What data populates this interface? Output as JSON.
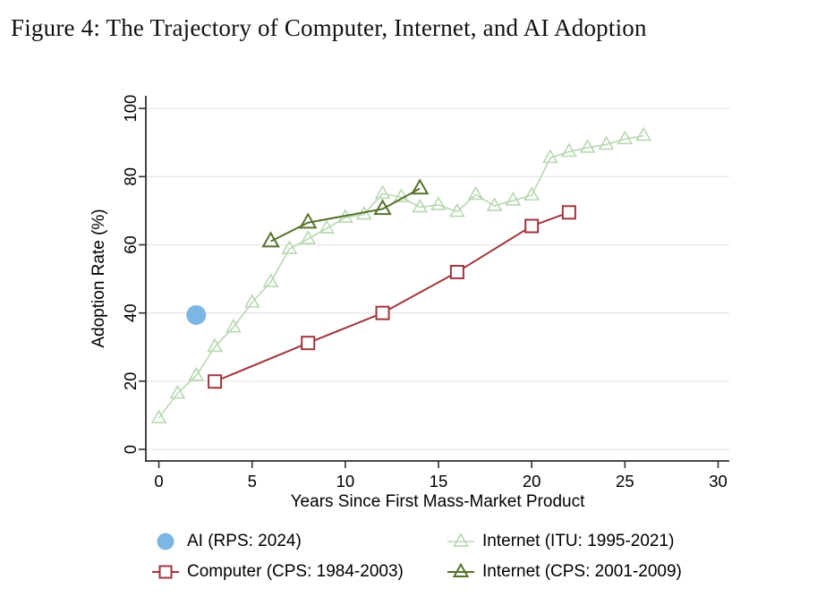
{
  "title": "Figure 4: The Trajectory of Computer, Internet, and AI Adoption",
  "chart_data": {
    "type": "line",
    "title": "Figure 4: The Trajectory of Computer, Internet, and AI Adoption",
    "xlabel": "Years Since First Mass-Market Product",
    "ylabel": "Adoption Rate (%)",
    "xticks": [
      0,
      5,
      10,
      15,
      20,
      25,
      30
    ],
    "yticks": [
      0,
      20,
      40,
      60,
      80,
      100
    ],
    "xlim": [
      -0.7,
      30.6
    ],
    "ylim": [
      -3.4,
      103.7
    ],
    "grid": "horizontal",
    "legend_position": "bottom, two columns, two rows",
    "colors": {
      "ai_blue": "#7db6e3",
      "computer_maroon": "#a0353c",
      "internet_light_green": "#b7d8b0",
      "internet_dark_green": "#55722c",
      "gridline": "#e6e6e6",
      "axis": "#303030",
      "text": "#000000"
    },
    "series": [
      {
        "name": "Internet (ITU: 1995-2021)",
        "marker": "open-triangle",
        "color": "#b7d8b0",
        "stroke_width": 1.6,
        "marker_size": 15,
        "x": [
          0,
          1,
          2,
          3,
          4,
          5,
          6,
          7,
          8,
          9,
          10,
          11,
          12,
          13,
          14,
          15,
          16,
          17,
          18,
          19,
          20,
          21,
          22,
          23,
          24,
          25,
          26
        ],
        "y": [
          9.2,
          16.4,
          21.6,
          30.1,
          35.8,
          43.1,
          49.1,
          58.8,
          61.7,
          64.8,
          68.0,
          68.9,
          75.0,
          74.0,
          71.0,
          71.7,
          69.7,
          74.7,
          71.4,
          73.0,
          74.5,
          85.5,
          87.3,
          88.5,
          89.4,
          91.0,
          92.0
        ]
      },
      {
        "name": "Internet (CPS: 2001-2009)",
        "marker": "open-triangle",
        "color": "#55722c",
        "stroke_width": 2,
        "marker_size": 17,
        "x": [
          6,
          8,
          12,
          14
        ],
        "y": [
          61.0,
          66.5,
          70.5,
          76.5
        ]
      },
      {
        "name": "Computer (CPS: 1984-2003)",
        "marker": "open-square",
        "color": "#a0353c",
        "stroke_width": 2,
        "marker_size": 14,
        "x": [
          3,
          8,
          12,
          16,
          20,
          22
        ],
        "y": [
          19.9,
          31.2,
          40.0,
          52.0,
          65.5,
          69.5
        ]
      },
      {
        "name": "AI (RPS: 2024)",
        "marker": "filled-circle",
        "color": "#7db6e3",
        "stroke_width": 0,
        "marker_size": 22,
        "x": [
          2
        ],
        "y": [
          39.4
        ]
      }
    ]
  }
}
